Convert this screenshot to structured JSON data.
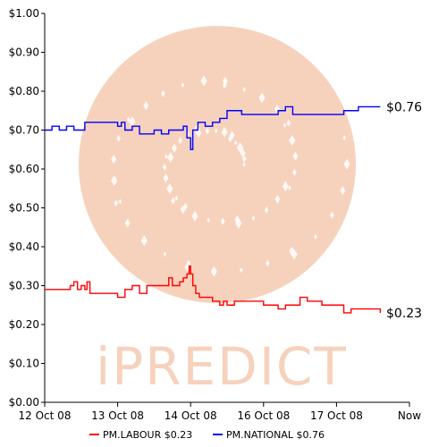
{
  "watermark": {
    "text": "iPREDICT",
    "color": "#f3c7ae"
  },
  "chart_data": {
    "type": "line",
    "title": "",
    "xlabel": "",
    "ylabel": "",
    "ylim": [
      0,
      1.0
    ],
    "y_ticks": [
      0.0,
      0.1,
      0.2,
      0.3,
      0.4,
      0.5,
      0.6,
      0.7,
      0.8,
      0.9,
      1.0
    ],
    "y_tick_labels": [
      "$0.00",
      "$0.10",
      "$0.20",
      "$0.30",
      "$0.40",
      "$0.50",
      "$0.60",
      "$0.70",
      "$0.80",
      "$0.90",
      "$1.00"
    ],
    "xlim": [
      "12 Oct 08",
      "Now"
    ],
    "x_tick_labels": [
      "12 Oct 08",
      "13 Oct 08",
      "14 Oct 08",
      "16 Oct 08",
      "17 Oct 08",
      "Now"
    ],
    "x_tick_values": [
      0,
      1,
      2,
      3,
      4,
      5
    ],
    "grid": false,
    "legend_position": "bottom",
    "series": [
      {
        "name": "PM.LABOUR",
        "legend_label": "PM.LABOUR $0.23",
        "color": "#ff0000",
        "end_label": "$0.23",
        "x": [
          0.0,
          0.2,
          0.35,
          0.4,
          0.45,
          0.5,
          0.55,
          0.58,
          0.62,
          0.7,
          0.8,
          0.9,
          1.0,
          1.05,
          1.1,
          1.2,
          1.3,
          1.4,
          1.55,
          1.65,
          1.7,
          1.75,
          1.8,
          1.85,
          1.9,
          1.95,
          1.98,
          2.0,
          2.03,
          2.07,
          2.12,
          2.2,
          2.3,
          2.4,
          2.45,
          2.5,
          2.6,
          2.7,
          2.8,
          2.9,
          3.0,
          3.1,
          3.2,
          3.3,
          3.4,
          3.5,
          3.6,
          3.7,
          3.8,
          3.9,
          4.0,
          4.1,
          4.2,
          4.3,
          4.4,
          4.5,
          4.6
        ],
        "values": [
          0.29,
          0.29,
          0.3,
          0.31,
          0.29,
          0.3,
          0.29,
          0.31,
          0.28,
          0.28,
          0.28,
          0.28,
          0.27,
          0.27,
          0.29,
          0.3,
          0.28,
          0.3,
          0.3,
          0.3,
          0.32,
          0.3,
          0.3,
          0.31,
          0.32,
          0.33,
          0.35,
          0.33,
          0.3,
          0.28,
          0.27,
          0.27,
          0.26,
          0.25,
          0.26,
          0.25,
          0.26,
          0.26,
          0.26,
          0.26,
          0.25,
          0.25,
          0.24,
          0.25,
          0.25,
          0.27,
          0.26,
          0.26,
          0.25,
          0.25,
          0.25,
          0.23,
          0.24,
          0.24,
          0.24,
          0.24,
          0.23
        ]
      },
      {
        "name": "PM.NATIONAL",
        "legend_label": "PM.NATIONAL $0.76",
        "color": "#0000ff",
        "end_label": "$0.76",
        "x": [
          0.0,
          0.1,
          0.2,
          0.3,
          0.4,
          0.5,
          0.55,
          0.6,
          0.7,
          0.8,
          0.9,
          1.0,
          1.05,
          1.1,
          1.2,
          1.3,
          1.4,
          1.5,
          1.6,
          1.7,
          1.8,
          1.9,
          1.95,
          2.0,
          2.03,
          2.1,
          2.2,
          2.3,
          2.4,
          2.5,
          2.6,
          2.7,
          2.8,
          2.9,
          3.0,
          3.1,
          3.2,
          3.3,
          3.4,
          3.5,
          3.6,
          3.7,
          3.8,
          3.9,
          4.0,
          4.1,
          4.2,
          4.3,
          4.4,
          4.5,
          4.6
        ],
        "values": [
          0.7,
          0.71,
          0.7,
          0.71,
          0.7,
          0.7,
          0.72,
          0.72,
          0.72,
          0.72,
          0.72,
          0.71,
          0.72,
          0.7,
          0.71,
          0.69,
          0.69,
          0.7,
          0.69,
          0.7,
          0.7,
          0.71,
          0.68,
          0.65,
          0.7,
          0.72,
          0.71,
          0.72,
          0.73,
          0.75,
          0.75,
          0.74,
          0.74,
          0.74,
          0.74,
          0.74,
          0.75,
          0.76,
          0.74,
          0.74,
          0.74,
          0.74,
          0.74,
          0.74,
          0.74,
          0.75,
          0.75,
          0.76,
          0.76,
          0.76,
          0.76
        ]
      }
    ]
  }
}
